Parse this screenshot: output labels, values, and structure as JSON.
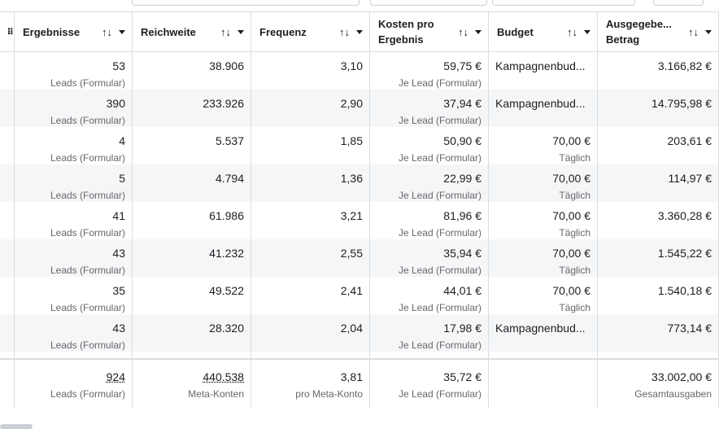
{
  "header": {
    "columns": [
      "Ergebnisse",
      "Reichweite",
      "Frequenz",
      "Kosten pro Ergebnis",
      "Budget",
      "Ausgegebe... Betrag"
    ]
  },
  "rows": [
    {
      "results": "53",
      "results_label": "Leads (Formular)",
      "reach": "38.906",
      "frequency": "3,10",
      "cost": "59,75 €",
      "cost_label": "Je Lead (Formular)",
      "budget": "Kampagnenbud...",
      "spent": "3.166,82 €"
    },
    {
      "results": "390",
      "results_label": "Leads (Formular)",
      "reach": "233.926",
      "frequency": "2,90",
      "cost": "37,94 €",
      "cost_label": "Je Lead (Formular)",
      "budget": "Kampagnenbud...",
      "spent": "14.795,98 €"
    },
    {
      "results": "4",
      "results_label": "Leads (Formular)",
      "reach": "5.537",
      "frequency": "1,85",
      "cost": "50,90 €",
      "cost_label": "Je Lead (Formular)",
      "budget": "70,00 €",
      "budget_label": "Täglich",
      "spent": "203,61 €"
    },
    {
      "results": "5",
      "results_label": "Leads (Formular)",
      "reach": "4.794",
      "frequency": "1,36",
      "cost": "22,99 €",
      "cost_label": "Je Lead (Formular)",
      "budget": "70,00 €",
      "budget_label": "Täglich",
      "spent": "114,97 €"
    },
    {
      "results": "41",
      "results_label": "Leads (Formular)",
      "reach": "61.986",
      "frequency": "3,21",
      "cost": "81,96 €",
      "cost_label": "Je Lead (Formular)",
      "budget": "70,00 €",
      "budget_label": "Täglich",
      "spent": "3.360,28 €"
    },
    {
      "results": "43",
      "results_label": "Leads (Formular)",
      "reach": "41.232",
      "frequency": "2,55",
      "cost": "35,94 €",
      "cost_label": "Je Lead (Formular)",
      "budget": "70,00 €",
      "budget_label": "Täglich",
      "spent": "1.545,22 €"
    },
    {
      "results": "35",
      "results_label": "Leads (Formular)",
      "reach": "49.522",
      "frequency": "2,41",
      "cost": "44,01 €",
      "cost_label": "Je Lead (Formular)",
      "budget": "70,00 €",
      "budget_label": "Täglich",
      "spent": "1.540,18 €"
    },
    {
      "results": "43",
      "results_label": "Leads (Formular)",
      "reach": "28.320",
      "frequency": "2,04",
      "cost": "17,98 €",
      "cost_label": "Je Lead (Formular)",
      "budget": "Kampagnenbud...",
      "spent": "773,14 €"
    }
  ],
  "totals": {
    "results": "924",
    "results_label": "Leads (Formular)",
    "reach": "440.538",
    "reach_label": "Meta-Konten",
    "frequency": "3,81",
    "frequency_label": "pro Meta-Konto",
    "cost": "35,72 €",
    "cost_label": "Je Lead (Formular)",
    "spent": "33.002,00 €",
    "spent_label": "Gesamtausgaben"
  }
}
